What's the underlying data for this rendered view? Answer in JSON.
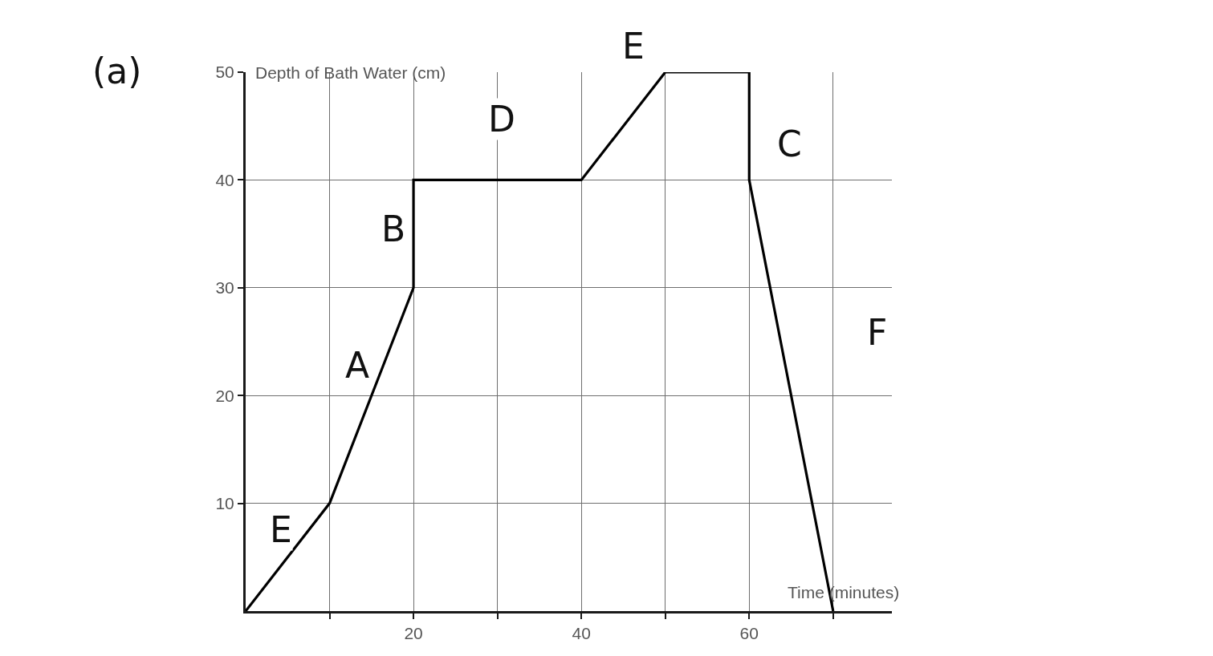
{
  "chart_data": {
    "type": "line",
    "xlabel": "Time (minutes)",
    "ylabel": "Depth of Bath Water (cm)",
    "annotations": [
      "(a)",
      "E",
      "A",
      "B",
      "D",
      "E",
      "C",
      "F"
    ],
    "x": [
      0,
      10,
      20,
      20,
      40,
      50,
      60,
      60,
      70
    ],
    "series": [
      {
        "color": "#000000",
        "values": [
          0,
          10,
          30,
          40,
          40,
          50,
          50,
          40,
          0
        ]
      }
    ],
    "xlim": [
      0,
      77
    ],
    "ylim": [
      0,
      50
    ],
    "xticks": [
      {
        "value": 10,
        "label": null
      },
      20,
      {
        "value": 30,
        "label": null
      },
      40,
      {
        "value": 50,
        "label": null
      },
      60,
      {
        "value": 70,
        "label": null
      }
    ],
    "yticks": [
      10,
      20,
      30,
      40,
      50
    ],
    "grid": true
  }
}
